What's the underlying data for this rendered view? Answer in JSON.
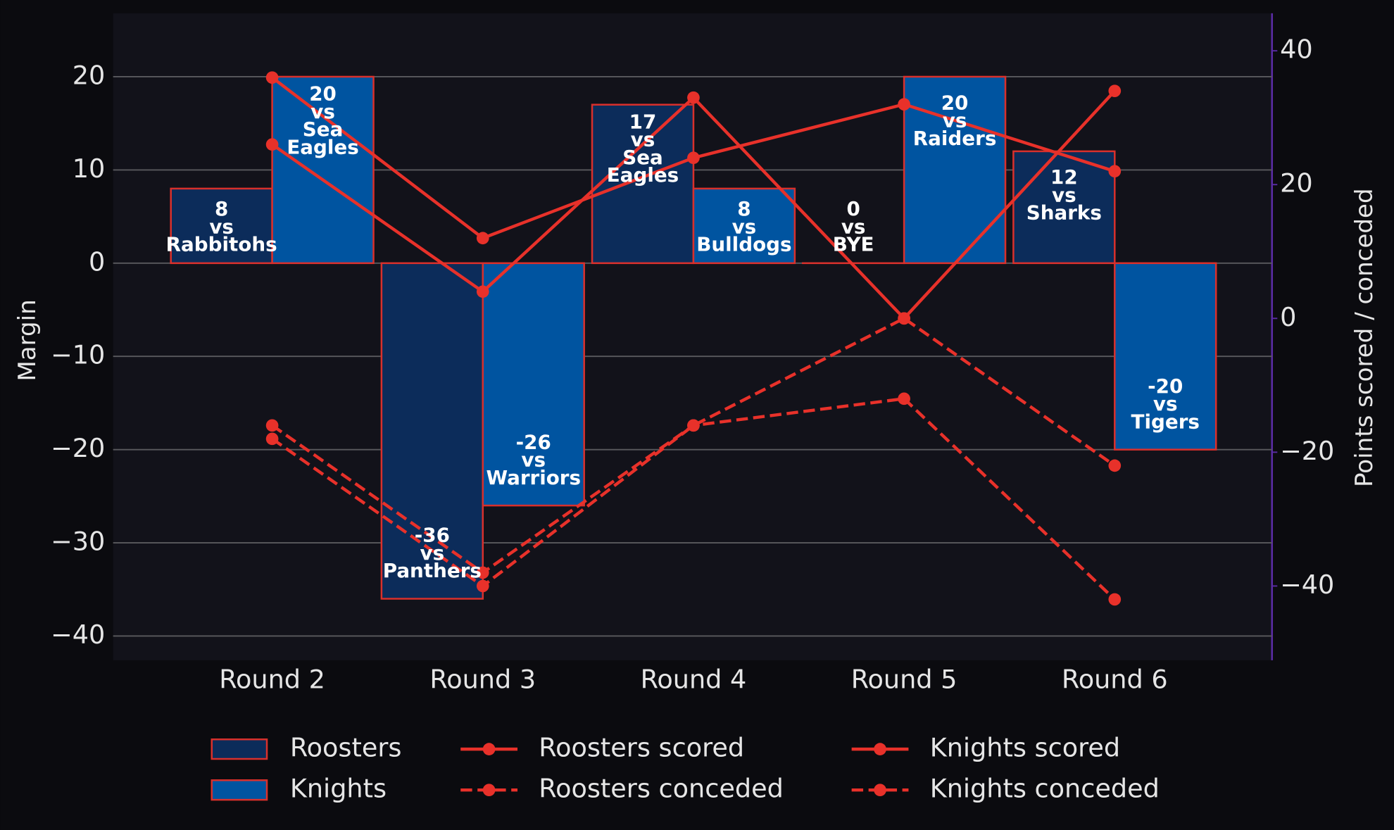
{
  "chart_data": {
    "type": "combo",
    "categories": [
      "Round 2",
      "Round 3",
      "Round 4",
      "Round 5",
      "Round 6"
    ],
    "ylabel": "Margin",
    "y2label": "Points scored / conceded",
    "ylim": [
      -42.6,
      26.8
    ],
    "yticks": [
      {
        "value": -40,
        "label": "−40"
      },
      {
        "value": -30,
        "label": "−30"
      },
      {
        "value": -20,
        "label": "−20"
      },
      {
        "value": -10,
        "label": "−10"
      },
      0,
      10,
      20
    ],
    "y2lim": [
      -51.1,
      45.6
    ],
    "y2ticks": [
      {
        "value": -40,
        "label": "−40"
      },
      {
        "value": -20,
        "label": "−20"
      },
      0,
      20,
      40
    ],
    "grid": true,
    "legend": "bottom",
    "versus_text": "vs",
    "series": [
      {
        "name": "Roosters",
        "type": "bar",
        "color": "#0c2c5a",
        "edge_color": "#d8302c",
        "values": [
          8,
          -36,
          17,
          0,
          12
        ],
        "opponents": [
          "Rabbitohs",
          "Panthers",
          "Sea Eagles",
          "BYE",
          "Sharks"
        ]
      },
      {
        "name": "Knights",
        "type": "bar",
        "color": "#0054a0",
        "edge_color": "#d8302c",
        "values": [
          20,
          -26,
          8,
          20,
          -20
        ],
        "opponents": [
          "Sea Eagles",
          "Warriors",
          "Bulldogs",
          "Raiders",
          "Tigers"
        ]
      },
      {
        "name": "Roosters scored",
        "type": "line",
        "axis": "y2",
        "color": "#e8312a",
        "linestyle": "solid",
        "values": [
          26,
          4,
          33,
          0,
          34
        ]
      },
      {
        "name": "Roosters conceded",
        "type": "line",
        "axis": "y2",
        "color": "#e8312a",
        "linestyle": "dashed",
        "values": [
          -18,
          -40,
          -16,
          0,
          -22
        ]
      },
      {
        "name": "Knights scored",
        "type": "line",
        "axis": "y2",
        "color": "#e8312a",
        "linestyle": "solid",
        "values": [
          36,
          12,
          24,
          32,
          22
        ]
      },
      {
        "name": "Knights conceded",
        "type": "line",
        "axis": "y2",
        "color": "#e8312a",
        "linestyle": "dashed",
        "values": [
          -16,
          -38,
          -16,
          -12,
          -42
        ]
      }
    ]
  }
}
